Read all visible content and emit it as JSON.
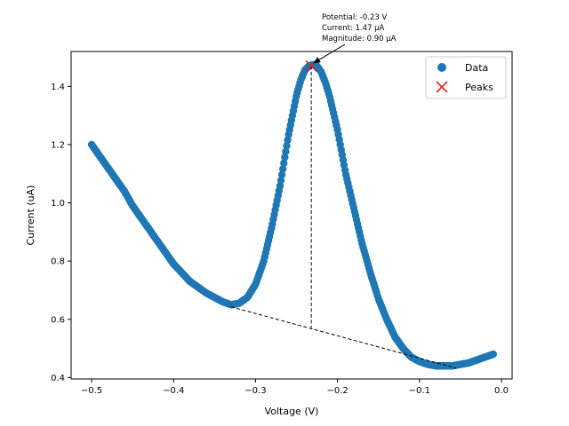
{
  "chart_data": {
    "type": "scatter",
    "xlabel": "Voltage (V)",
    "ylabel": "Current (uA)",
    "xlim": [
      -0.525,
      0.013
    ],
    "ylim": [
      0.395,
      1.52
    ],
    "xticks": [
      -0.5,
      -0.4,
      -0.3,
      -0.2,
      -0.1,
      0.0
    ],
    "xtick_labels": [
      "−0.5",
      "−0.4",
      "−0.3",
      "−0.2",
      "−0.1",
      "0.0"
    ],
    "yticks": [
      0.4,
      0.6,
      0.8,
      1.0,
      1.2,
      1.4
    ],
    "ytick_labels": [
      "0.4",
      "0.6",
      "0.8",
      "1.0",
      "1.2",
      "1.4"
    ],
    "grid": false,
    "legend": "top-right",
    "series": [
      {
        "name": "Data",
        "color": "#1f77b4",
        "marker": "circle",
        "curve": [
          [
            -0.5,
            1.2
          ],
          [
            -0.49,
            1.16
          ],
          [
            -0.48,
            1.12
          ],
          [
            -0.47,
            1.08
          ],
          [
            -0.46,
            1.04
          ],
          [
            -0.45,
            0.99
          ],
          [
            -0.44,
            0.95
          ],
          [
            -0.43,
            0.91
          ],
          [
            -0.42,
            0.87
          ],
          [
            -0.41,
            0.83
          ],
          [
            -0.4,
            0.79
          ],
          [
            -0.39,
            0.76
          ],
          [
            -0.38,
            0.73
          ],
          [
            -0.37,
            0.71
          ],
          [
            -0.36,
            0.69
          ],
          [
            -0.35,
            0.675
          ],
          [
            -0.34,
            0.66
          ],
          [
            -0.33,
            0.65
          ],
          [
            -0.32,
            0.655
          ],
          [
            -0.31,
            0.675
          ],
          [
            -0.3,
            0.72
          ],
          [
            -0.29,
            0.8
          ],
          [
            -0.28,
            0.92
          ],
          [
            -0.27,
            1.06
          ],
          [
            -0.26,
            1.23
          ],
          [
            -0.25,
            1.37
          ],
          [
            -0.245,
            1.42
          ],
          [
            -0.24,
            1.455
          ],
          [
            -0.235,
            1.47
          ],
          [
            -0.23,
            1.475
          ],
          [
            -0.225,
            1.47
          ],
          [
            -0.22,
            1.45
          ],
          [
            -0.215,
            1.415
          ],
          [
            -0.21,
            1.37
          ],
          [
            -0.2,
            1.25
          ],
          [
            -0.19,
            1.1
          ],
          [
            -0.18,
            0.98
          ],
          [
            -0.17,
            0.86
          ],
          [
            -0.16,
            0.76
          ],
          [
            -0.15,
            0.67
          ],
          [
            -0.14,
            0.6
          ],
          [
            -0.13,
            0.54
          ],
          [
            -0.12,
            0.5
          ],
          [
            -0.11,
            0.47
          ],
          [
            -0.1,
            0.455
          ],
          [
            -0.09,
            0.445
          ],
          [
            -0.08,
            0.44
          ],
          [
            -0.07,
            0.44
          ],
          [
            -0.06,
            0.44
          ],
          [
            -0.05,
            0.445
          ],
          [
            -0.04,
            0.45
          ],
          [
            -0.03,
            0.46
          ],
          [
            -0.02,
            0.47
          ],
          [
            -0.01,
            0.48
          ]
        ]
      },
      {
        "name": "Peaks",
        "color": "#d62728",
        "marker": "x",
        "points": [
          [
            -0.232,
            1.47
          ]
        ]
      }
    ],
    "baseline": {
      "x": [
        -0.33,
        -0.055
      ],
      "y": [
        0.643,
        0.432
      ]
    },
    "peak_drop": {
      "x": -0.232,
      "y_top": 1.47,
      "y_bottom": 0.57
    },
    "annotation": {
      "lines": [
        "Potential: -0.23 V",
        "Current: 1.47 µA",
        "Magnitude: 0.90 µA"
      ],
      "target": [
        -0.232,
        1.47
      ]
    }
  }
}
